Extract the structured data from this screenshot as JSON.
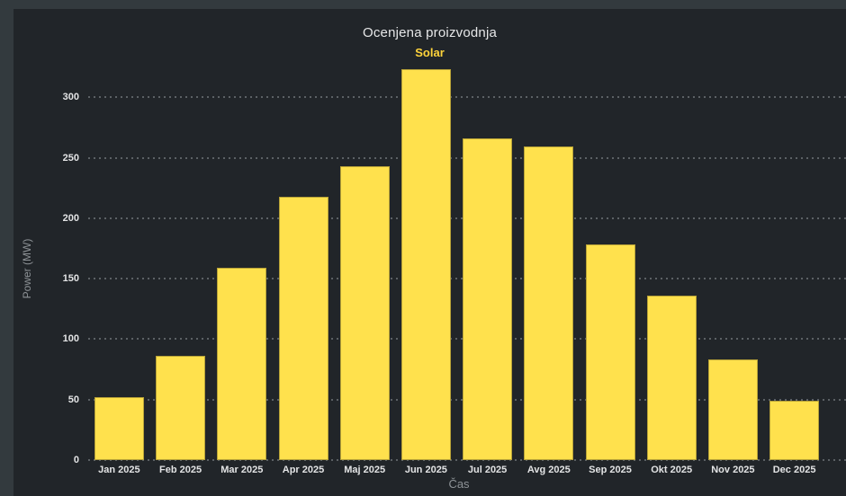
{
  "chart_data": {
    "type": "bar",
    "title": "Ocenjena proizvodnja",
    "legend": {
      "label": "Solar",
      "position": "top"
    },
    "categories": [
      "Jan 2025",
      "Feb 2025",
      "Mar 2025",
      "Apr 2025",
      "Maj 2025",
      "Jun 2025",
      "Jul 2025",
      "Avg 2025",
      "Sep 2025",
      "Okt 2025",
      "Nov 2025",
      "Dec 2025"
    ],
    "series": [
      {
        "name": "Solar",
        "values": [
          52,
          86,
          159,
          218,
          243,
          323,
          266,
          259,
          178,
          136,
          83,
          49
        ]
      }
    ],
    "xlabel": "Čas",
    "ylabel": "Power (MW)",
    "ylim": [
      0,
      325
    ],
    "yticks": [
      0,
      50,
      100,
      150,
      200,
      250,
      300
    ],
    "grid": "horizontal-dotted",
    "colors": {
      "bar": "#FFE14D",
      "legend_text": "#FFD43B",
      "panel_bg": "#212529",
      "outer_bg": "#333A3E",
      "gridline": "#5C6165",
      "tick_text": "#E3E4E5",
      "axis_title_text": "#8E9397",
      "title_text": "#E6E7E8"
    }
  }
}
